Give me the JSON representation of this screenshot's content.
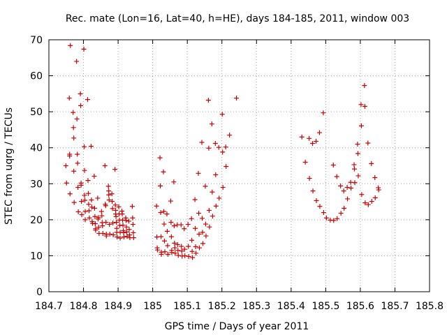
{
  "chart_data": {
    "type": "scatter",
    "title": "Rec. mate (Lon=16, Lat=40, h=HE), days 184-185, 2011, window 003",
    "xlabel": "GPS time / Days of year 2011",
    "ylabel": "STEC from uqrg / TECUs",
    "xlim": [
      184.7,
      185.8
    ],
    "ylim": [
      0,
      70
    ],
    "x_ticks": [
      184.7,
      184.8,
      184.9,
      185.0,
      185.1,
      185.2,
      185.3,
      185.4,
      185.5,
      185.6,
      185.7,
      185.8
    ],
    "x_tick_labels": [
      "184.7",
      "184.8",
      "184.9",
      "185",
      "185.1",
      "185.2",
      "185.3",
      "185.4",
      "185.5",
      "185.6",
      "185.7",
      "185.8"
    ],
    "y_ticks": [
      0,
      10,
      20,
      30,
      40,
      50,
      60,
      70
    ],
    "y_tick_labels": [
      "0",
      "10",
      "20",
      "30",
      "40",
      "50",
      "60",
      "70"
    ],
    "grid": true,
    "marker": "+",
    "color": "#cc0000",
    "series": [
      {
        "name": "STEC",
        "points": [
          [
            184.749,
            35
          ],
          [
            184.751,
            30.2
          ],
          [
            184.759,
            53.8
          ],
          [
            184.76,
            38.2
          ],
          [
            184.76,
            37.7
          ],
          [
            184.761,
            27.2
          ],
          [
            184.762,
            68.4
          ],
          [
            184.77,
            49.8
          ],
          [
            184.771,
            45.6
          ],
          [
            184.772,
            42.7
          ],
          [
            184.772,
            33.5
          ],
          [
            184.773,
            24.8
          ],
          [
            184.78,
            64.0
          ],
          [
            184.781,
            48.0
          ],
          [
            184.782,
            38.2
          ],
          [
            184.783,
            35.7
          ],
          [
            184.784,
            29.0
          ],
          [
            184.785,
            22.2
          ],
          [
            184.791,
            55.0
          ],
          [
            184.792,
            51.7
          ],
          [
            184.793,
            30.2
          ],
          [
            184.793,
            29.6
          ],
          [
            184.794,
            25.1
          ],
          [
            184.795,
            21.4
          ],
          [
            184.801,
            67.4
          ],
          [
            184.802,
            40.3
          ],
          [
            184.803,
            33.7
          ],
          [
            184.803,
            26.8
          ],
          [
            184.804,
            25.4
          ],
          [
            184.805,
            22.3
          ],
          [
            184.805,
            20.0
          ],
          [
            184.812,
            53.4
          ],
          [
            184.813,
            30.9
          ],
          [
            184.814,
            27.3
          ],
          [
            184.815,
            24.3
          ],
          [
            184.816,
            22.5
          ],
          [
            184.817,
            20.5
          ],
          [
            184.822,
            40.4
          ],
          [
            184.823,
            25.5
          ],
          [
            184.824,
            23.5
          ],
          [
            184.825,
            19.5
          ],
          [
            184.826,
            19.0
          ],
          [
            184.831,
            32.1
          ],
          [
            184.832,
            23.2
          ],
          [
            184.833,
            20.9
          ],
          [
            184.834,
            18.9
          ],
          [
            184.835,
            17.5
          ],
          [
            184.835,
            17.1
          ],
          [
            184.841,
            26.0
          ],
          [
            184.842,
            20.2
          ],
          [
            184.843,
            20.6
          ],
          [
            184.844,
            17.9
          ],
          [
            184.845,
            16.2
          ],
          [
            184.852,
            22.3
          ],
          [
            184.853,
            21.1
          ],
          [
            184.854,
            19.2
          ],
          [
            184.855,
            18.3
          ],
          [
            184.856,
            16.2
          ],
          [
            184.862,
            35.0
          ],
          [
            184.863,
            24.3
          ],
          [
            184.864,
            23.9
          ],
          [
            184.865,
            19.3
          ],
          [
            184.866,
            16.0
          ],
          [
            184.866,
            15.5
          ],
          [
            184.872,
            29.3
          ],
          [
            184.873,
            28.0
          ],
          [
            184.873,
            26.9
          ],
          [
            184.874,
            25.5
          ],
          [
            184.875,
            18.7
          ],
          [
            184.876,
            16.0
          ],
          [
            184.882,
            27.2
          ],
          [
            184.883,
            25.1
          ],
          [
            184.884,
            23.1
          ],
          [
            184.885,
            19.1
          ],
          [
            184.886,
            15.8
          ],
          [
            184.891,
            34.0
          ],
          [
            184.892,
            24.1
          ],
          [
            184.893,
            22.6
          ],
          [
            184.893,
            21.6
          ],
          [
            184.894,
            20.9
          ],
          [
            184.895,
            19.3
          ],
          [
            184.896,
            17.6
          ],
          [
            184.896,
            16.5
          ],
          [
            184.897,
            15.2
          ],
          [
            184.902,
            23.6
          ],
          [
            184.903,
            21.6
          ],
          [
            184.904,
            19.9
          ],
          [
            184.905,
            18.4
          ],
          [
            184.906,
            16.5
          ],
          [
            184.906,
            14.9
          ],
          [
            184.911,
            22.4
          ],
          [
            184.912,
            21.6
          ],
          [
            184.913,
            19.9
          ],
          [
            184.914,
            18.5
          ],
          [
            184.915,
            17.0
          ],
          [
            184.916,
            16.4
          ],
          [
            184.917,
            15.2
          ],
          [
            184.922,
            20.5
          ],
          [
            184.923,
            19.8
          ],
          [
            184.924,
            18.0
          ],
          [
            184.925,
            16.6
          ],
          [
            184.926,
            15.4
          ],
          [
            184.931,
            19.6
          ],
          [
            184.932,
            17.3
          ],
          [
            184.933,
            15.8
          ],
          [
            184.934,
            15.0
          ],
          [
            184.941,
            23.7
          ],
          [
            184.942,
            20.5
          ],
          [
            184.943,
            18.7
          ],
          [
            184.944,
            16.4
          ],
          [
            184.945,
            15.0
          ],
          [
            185.011,
            23.8
          ],
          [
            185.012,
            15.2
          ],
          [
            185.013,
            12.2
          ],
          [
            185.014,
            11.6
          ],
          [
            185.021,
            37.2
          ],
          [
            185.022,
            29.4
          ],
          [
            185.023,
            22.0
          ],
          [
            185.024,
            15.3
          ],
          [
            185.025,
            11.0
          ],
          [
            185.025,
            10.4
          ],
          [
            185.031,
            33.3
          ],
          [
            185.032,
            22.3
          ],
          [
            185.033,
            18.8
          ],
          [
            185.034,
            14.1
          ],
          [
            185.035,
            11.1
          ],
          [
            185.041,
            21.6
          ],
          [
            185.042,
            16.8
          ],
          [
            185.043,
            12.8
          ],
          [
            185.044,
            10.4
          ],
          [
            185.052,
            25.2
          ],
          [
            185.053,
            19.3
          ],
          [
            185.054,
            15.3
          ],
          [
            185.055,
            11.5
          ],
          [
            185.055,
            10.9
          ],
          [
            185.061,
            30.5
          ],
          [
            185.062,
            18.3
          ],
          [
            185.063,
            13.5
          ],
          [
            185.064,
            12.2
          ],
          [
            185.065,
            10.7
          ],
          [
            185.071,
            18.6
          ],
          [
            185.072,
            13.1
          ],
          [
            185.073,
            11.5
          ],
          [
            185.074,
            10.1
          ],
          [
            185.082,
            18.6
          ],
          [
            185.083,
            12.6
          ],
          [
            185.084,
            11.3
          ],
          [
            185.085,
            9.9
          ],
          [
            185.091,
            17.5
          ],
          [
            185.092,
            11.8
          ],
          [
            185.093,
            10.0
          ],
          [
            185.102,
            18.7
          ],
          [
            185.103,
            12.6
          ],
          [
            185.104,
            9.8
          ],
          [
            185.112,
            20.3
          ],
          [
            185.113,
            14.3
          ],
          [
            185.114,
            11.2
          ],
          [
            185.115,
            9.5
          ],
          [
            185.122,
            25.6
          ],
          [
            185.123,
            17.6
          ],
          [
            185.124,
            12.5
          ],
          [
            185.125,
            10.7
          ],
          [
            185.132,
            32.9
          ],
          [
            185.133,
            21.8
          ],
          [
            185.134,
            16.0
          ],
          [
            185.135,
            12.2
          ],
          [
            185.142,
            41.5
          ],
          [
            185.143,
            20.4
          ],
          [
            185.144,
            16.5
          ],
          [
            185.145,
            13.4
          ],
          [
            185.152,
            29.3
          ],
          [
            185.153,
            18.8
          ],
          [
            185.154,
            15.5
          ],
          [
            185.161,
            53.2
          ],
          [
            185.162,
            39.9
          ],
          [
            185.163,
            22.6
          ],
          [
            185.164,
            18.0
          ],
          [
            185.171,
            46.6
          ],
          [
            185.172,
            27.7
          ],
          [
            185.173,
            21.0
          ],
          [
            185.181,
            41.2
          ],
          [
            185.182,
            32.5
          ],
          [
            185.183,
            23.8
          ],
          [
            185.191,
            40.1
          ],
          [
            185.192,
            26.0
          ],
          [
            185.201,
            49.3
          ],
          [
            185.202,
            38.8
          ],
          [
            185.203,
            29.0
          ],
          [
            185.211,
            40.2
          ],
          [
            185.212,
            34.8
          ],
          [
            185.222,
            43.5
          ],
          [
            185.242,
            53.8
          ],
          [
            185.431,
            43.0
          ],
          [
            185.441,
            36.0
          ],
          [
            185.452,
            42.6
          ],
          [
            185.453,
            31.5
          ],
          [
            185.462,
            41.2
          ],
          [
            185.463,
            28.0
          ],
          [
            185.472,
            41.8
          ],
          [
            185.473,
            25.3
          ],
          [
            185.482,
            44.2
          ],
          [
            185.483,
            23.7
          ],
          [
            185.493,
            49.7
          ],
          [
            185.494,
            22.0
          ],
          [
            185.502,
            20.5
          ],
          [
            185.513,
            19.9
          ],
          [
            185.522,
            35.2
          ],
          [
            185.523,
            19.8
          ],
          [
            185.532,
            32.0
          ],
          [
            185.533,
            20.3
          ],
          [
            185.543,
            29.4
          ],
          [
            185.544,
            21.8
          ],
          [
            185.552,
            28.0
          ],
          [
            185.553,
            23.2
          ],
          [
            185.562,
            29.0
          ],
          [
            185.563,
            25.8
          ],
          [
            185.572,
            30.4
          ],
          [
            185.573,
            28.8
          ],
          [
            185.582,
            35.3
          ],
          [
            185.583,
            34.1
          ],
          [
            185.584,
            30.3
          ],
          [
            185.592,
            41.0
          ],
          [
            185.593,
            38.4
          ],
          [
            185.594,
            32.2
          ],
          [
            185.602,
            52.0
          ],
          [
            185.603,
            46.1
          ],
          [
            185.604,
            27.0
          ],
          [
            185.612,
            57.3
          ],
          [
            185.613,
            51.5
          ],
          [
            185.614,
            24.7
          ],
          [
            185.622,
            41.3
          ],
          [
            185.623,
            24.2
          ],
          [
            185.632,
            35.6
          ],
          [
            185.633,
            25.1
          ],
          [
            185.642,
            31.7
          ],
          [
            185.643,
            26.1
          ],
          [
            185.652,
            28.9
          ],
          [
            185.653,
            28.3
          ]
        ]
      }
    ]
  }
}
